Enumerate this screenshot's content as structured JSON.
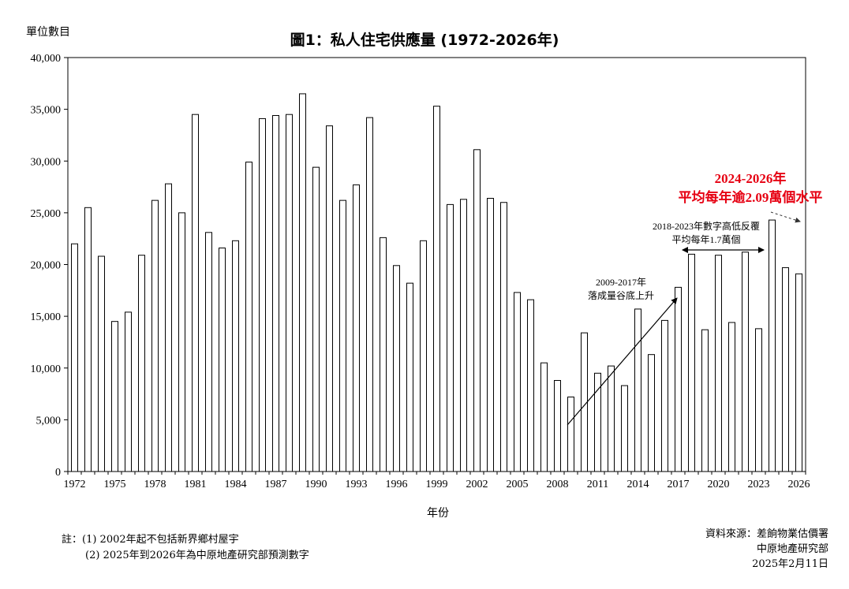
{
  "chart_data": {
    "type": "bar",
    "title": "圖1：私人住宅供應量 (1972-2026年)",
    "unit_label": "單位數目",
    "xlabel": "年份",
    "ylabel": "",
    "ylim": [
      0,
      40000
    ],
    "yticks": [
      0,
      5000,
      10000,
      15000,
      20000,
      25000,
      30000,
      35000,
      40000
    ],
    "ytick_labels": [
      "0",
      "5,000",
      "10,000",
      "15,000",
      "20,000",
      "25,000",
      "30,000",
      "35,000",
      "40,000"
    ],
    "xtick_labels": [
      "1972",
      "1975",
      "1978",
      "1981",
      "1984",
      "1987",
      "1990",
      "1993",
      "1996",
      "1999",
      "2002",
      "2005",
      "2008",
      "2011",
      "2014",
      "2017",
      "2020",
      "2023",
      "2026"
    ],
    "categories": [
      1972,
      1973,
      1974,
      1975,
      1976,
      1977,
      1978,
      1979,
      1980,
      1981,
      1982,
      1983,
      1984,
      1985,
      1986,
      1987,
      1988,
      1989,
      1990,
      1991,
      1992,
      1993,
      1994,
      1995,
      1996,
      1997,
      1998,
      1999,
      2000,
      2001,
      2002,
      2003,
      2004,
      2005,
      2006,
      2007,
      2008,
      2009,
      2010,
      2011,
      2012,
      2013,
      2014,
      2015,
      2016,
      2017,
      2018,
      2019,
      2020,
      2021,
      2022,
      2023,
      2024,
      2025,
      2026
    ],
    "values": [
      22000,
      25500,
      20800,
      14500,
      15400,
      20900,
      26200,
      27800,
      25000,
      34500,
      23100,
      21600,
      22300,
      29900,
      34100,
      34400,
      34500,
      36500,
      29400,
      33400,
      26200,
      27700,
      34200,
      22600,
      19900,
      18200,
      22300,
      35300,
      25800,
      26300,
      31100,
      26400,
      26000,
      17300,
      16600,
      10500,
      8800,
      7200,
      13400,
      9500,
      10200,
      8300,
      15700,
      11300,
      14600,
      17800,
      21000,
      13700,
      20900,
      14400,
      21200,
      13800,
      24300,
      19700,
      19100
    ],
    "grid": false,
    "annotations": {
      "a2009_line1": "2009-2017年",
      "a2009_line2": "落成量谷底上升",
      "a2018_line1": "2018-2023年數字高低反覆",
      "a2018_line2": "平均每年1.7萬個",
      "a2024_line1": "2024-2026年",
      "a2024_line2": "平均每年逾2.09萬個水平",
      "highlight_color": "#e60012"
    }
  },
  "notes": {
    "n1": "註：(1) 2002年起不包括新界鄉村屋宇",
    "n2": "(2)  2025年到2026年為中原地產研究部預測數字"
  },
  "source": {
    "line1": "資料來源：差餉物業估價署",
    "line2": "中原地產研究部",
    "line3": "2025年2月11日"
  }
}
